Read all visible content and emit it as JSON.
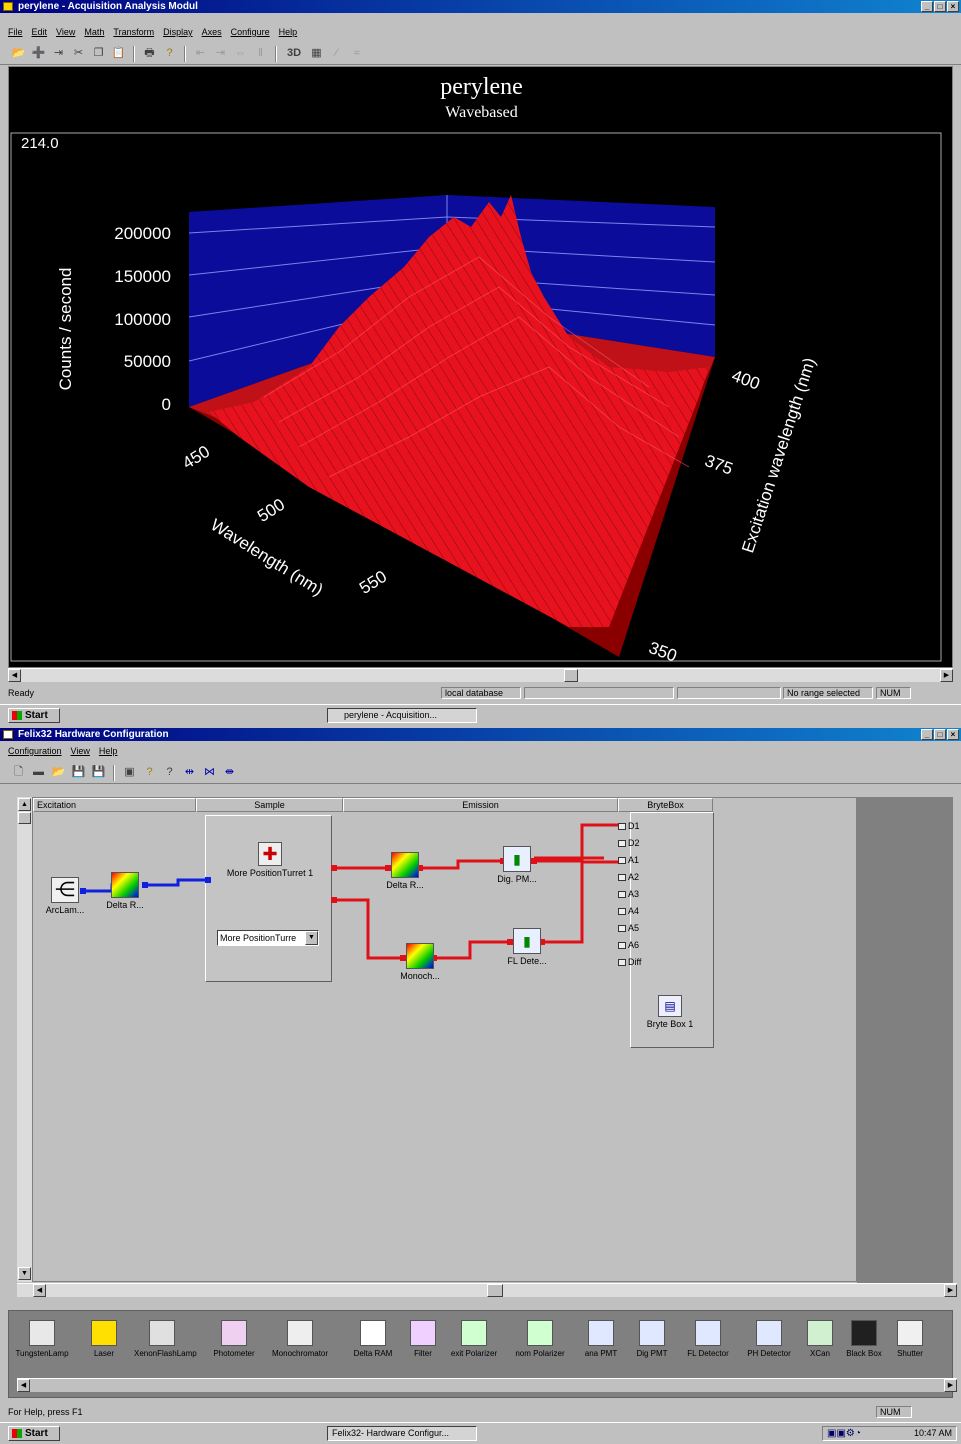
{
  "top_window": {
    "title": "perylene - Acquisition Analysis Modul",
    "menu": [
      "File",
      "Edit",
      "View",
      "Math",
      "Transform",
      "Display",
      "Axes",
      "Configure",
      "Help"
    ],
    "toolbar_icons": [
      "open-icon",
      "new-trace-icon",
      "insert-icon",
      "cut-icon",
      "copy-icon",
      "paste-icon",
      "print-icon",
      "help-icon",
      "zoom-left-icon",
      "zoom-right-icon",
      "zoom-full-icon",
      "pause-icon"
    ],
    "view_3d_label": "3D",
    "plot": {
      "title": "perylene",
      "subtitle": "Wavebased",
      "corner_value": "214.0",
      "y_axis_label": "Counts / second",
      "y_ticks": [
        "200000",
        "150000",
        "100000",
        "50000",
        "0"
      ],
      "x_axis_label": "Wavelength (nm)",
      "x_ticks": [
        "450",
        "500",
        "550"
      ],
      "z_axis_label": "Excitation wavelength (nm)",
      "z_ticks": [
        "400",
        "375",
        "350"
      ],
      "colors": {
        "surface": "#e8121f",
        "wall": "#0c0c9a",
        "floor": "#8a0000",
        "background": "#000000"
      }
    },
    "status": {
      "ready": "Ready",
      "db": "local database",
      "range": "No range selected",
      "num": "NUM"
    }
  },
  "taskbar_top": {
    "start": "Start",
    "item": "perylene - Acquisition..."
  },
  "bottom_window": {
    "title": "Felix32  Hardware Configuration",
    "menu": [
      "Configuration",
      "View",
      "Help"
    ],
    "columns": [
      "Excitation",
      "Sample",
      "Emission",
      "BryteBox"
    ],
    "components": {
      "arc_lamp": "ArcLam...",
      "delta_ex": "Delta R...",
      "turret": "More PositionTurret 1",
      "turret_select": "More PositionTurre",
      "delta_em": "Delta R...",
      "dig_pm": "Dig. PM...",
      "monoch": "Monoch...",
      "fl_det": "FL Dete...",
      "brytebox": "Bryte Box 1"
    },
    "ports": [
      "D1",
      "D2",
      "A1",
      "A2",
      "A3",
      "A4",
      "A5",
      "A6",
      "Diff"
    ],
    "palette": [
      "TungstenLamp",
      "Laser",
      "XenonFlashLamp",
      "Photometer",
      "Monochromator",
      "Delta RAM",
      "Filter",
      "exit Polarizer",
      "nom Polarizer",
      "ana PMT",
      "Dig PMT",
      "FL Detector",
      "PH Detector",
      "XCan",
      "Black Box",
      "Shutter"
    ],
    "status": {
      "help": "For Help, press F1",
      "num": "NUM"
    }
  },
  "taskbar_bottom": {
    "start": "Start",
    "item": "Felix32- Hardware Configur...",
    "clock": "10:47 AM"
  }
}
